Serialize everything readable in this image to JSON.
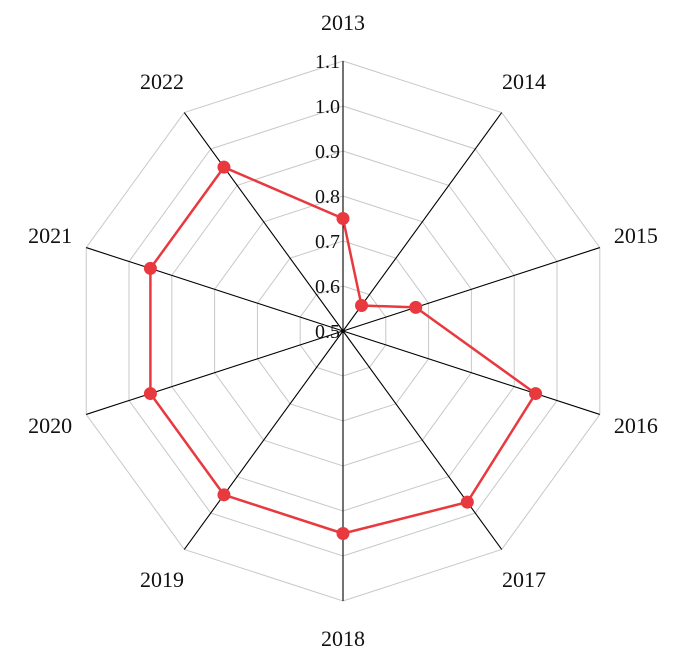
{
  "chart_data": {
    "type": "radar",
    "categories": [
      "2013",
      "2014",
      "2015",
      "2016",
      "2017",
      "2018",
      "2019",
      "2020",
      "2021",
      "2022"
    ],
    "series": [
      {
        "values": [
          0.75,
          0.57,
          0.67,
          0.95,
          0.97,
          0.95,
          0.95,
          0.95,
          0.95,
          0.95
        ],
        "color": "#e8393f"
      }
    ],
    "rlim": [
      0.5,
      1.1
    ],
    "rticks": [
      "0.5",
      "0.6",
      "0.7",
      "0.8",
      "0.9",
      "1.0",
      "1.1"
    ],
    "grid": true,
    "legend": "none",
    "colors": {
      "grid": "#c8c8c8",
      "spoke": "#000000",
      "series": "#e8393f"
    }
  }
}
